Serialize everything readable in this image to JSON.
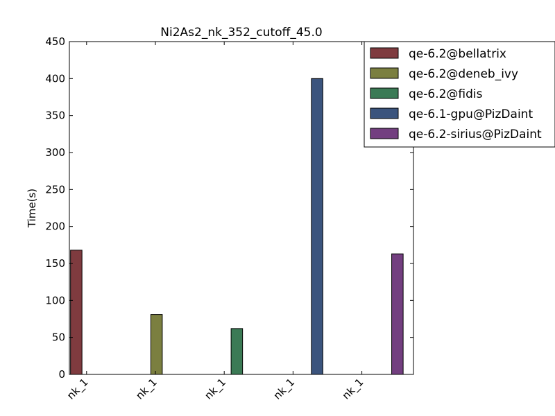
{
  "chart_data": {
    "type": "bar",
    "title": "Ni2As2_nk_352_cutoff_45.0",
    "xlabel": "",
    "ylabel": "Time(s)",
    "ylim": [
      0,
      450
    ],
    "yticks": [
      0,
      50,
      100,
      150,
      200,
      250,
      300,
      350,
      400,
      450
    ],
    "categories": [
      "nk_1",
      "nk_1",
      "nk_1",
      "nk_1",
      "nk_1"
    ],
    "grid": false,
    "legend_position": "top-right",
    "series": [
      {
        "name": "qe-6.2@bellatrix",
        "color": "#7f3b3f",
        "values": [
          168,
          null,
          null,
          null,
          null
        ]
      },
      {
        "name": "qe-6.2@deneb_ivy",
        "color": "#7b7f40",
        "values": [
          null,
          81,
          null,
          null,
          null
        ]
      },
      {
        "name": "qe-6.2@fidis",
        "color": "#3b7a55",
        "values": [
          null,
          null,
          62,
          null,
          null
        ]
      },
      {
        "name": "qe-6.1-gpu@PizDaint",
        "color": "#3b547d",
        "values": [
          null,
          null,
          null,
          400,
          null
        ]
      },
      {
        "name": "qe-6.2-sirius@PizDaint",
        "color": "#733f80",
        "values": [
          null,
          null,
          null,
          null,
          163
        ]
      }
    ]
  }
}
